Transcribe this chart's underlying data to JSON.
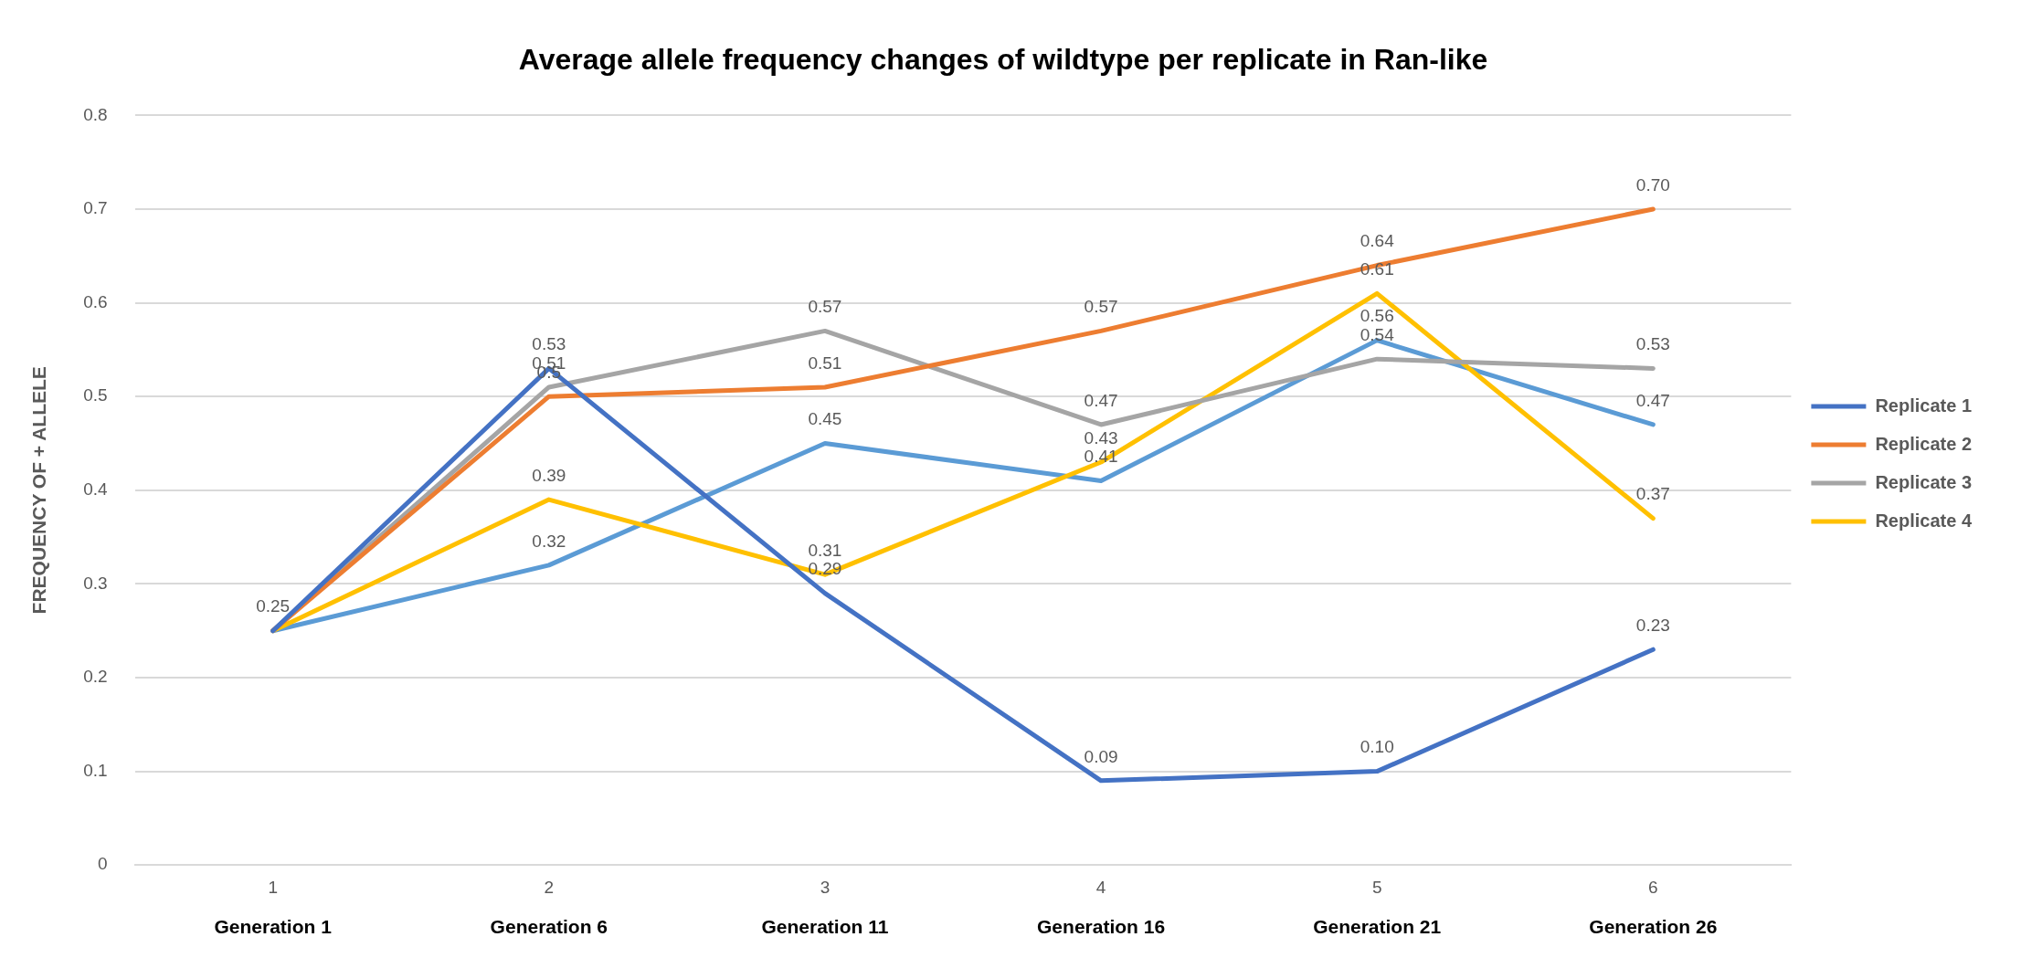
{
  "chart_data": {
    "type": "line",
    "title": "Average allele frequency changes of wildtype per replicate in Ran-like",
    "ylabel": "FREQUENCY OF + ALLELE",
    "categories": [
      "1",
      "2",
      "3",
      "4",
      "5",
      "6"
    ],
    "annotations": [
      "Generation 1",
      "Generation 6",
      "Generation 11",
      "Generation 16",
      "Generation 21",
      "Generation 26"
    ],
    "ylim": [
      0,
      0.8
    ],
    "yticks": [
      0,
      0.1,
      0.2,
      0.3,
      0.4,
      0.5,
      0.6,
      0.7,
      0.8
    ],
    "grid": "y",
    "legend": "right",
    "marker": "none",
    "line_style": "solid",
    "series": [
      {
        "name": "Replicate 1",
        "color": "#4472c4",
        "values": [
          0.25,
          0.53,
          0.29,
          0.09,
          0.1,
          0.23
        ],
        "value_labels": [
          null,
          "0.53",
          "0.29",
          "0.09",
          "0.10",
          "0.23"
        ]
      },
      {
        "name": "Replicate 2",
        "color": "#ed7d31",
        "values": [
          0.25,
          0.5,
          0.51,
          0.57,
          0.64,
          0.7
        ],
        "value_labels": [
          null,
          "0.5",
          "0.51",
          "0.57",
          "0.64",
          "0.70"
        ]
      },
      {
        "name": "Replicate 3",
        "color": "#a5a5a5",
        "values": [
          0.25,
          0.51,
          0.57,
          0.47,
          0.54,
          0.53
        ],
        "value_labels": [
          null,
          "0.51",
          "0.57",
          "0.47",
          "0.54",
          "0.53"
        ]
      },
      {
        "name": "Replicate 4",
        "color": "#ffc000",
        "values": [
          0.25,
          0.39,
          0.31,
          0.43,
          0.61,
          0.37
        ],
        "value_labels": [
          null,
          "0.39",
          "0.31",
          "0.43",
          "0.61",
          "0.37"
        ]
      },
      {
        "color": "#5b9bd5",
        "values": [
          0.25,
          0.32,
          0.45,
          0.41,
          0.56,
          0.47
        ],
        "value_labels": [
          "0.25",
          "0.32",
          "0.45",
          "0.41",
          "0.56",
          "0.47"
        ]
      }
    ]
  }
}
